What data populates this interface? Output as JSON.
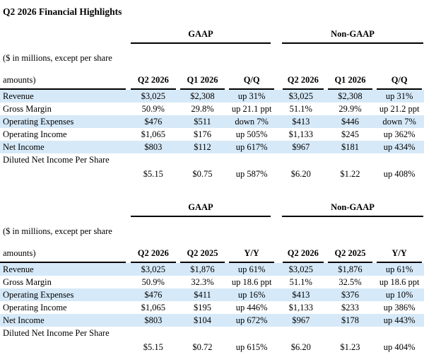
{
  "title": "Q2 2026 Financial Highlights",
  "colors": {
    "highlight_row": "#d6e9f8"
  },
  "tables": [
    {
      "group_headers": {
        "left": "GAAP",
        "right": "Non-GAAP"
      },
      "units_note": {
        "line1": "($ in millions, except per share",
        "line2": "amounts)"
      },
      "columns": [
        "Q2 2026",
        "Q1 2026",
        "Q/Q",
        "Q2 2026",
        "Q1 2026",
        "Q/Q"
      ],
      "rows": [
        {
          "label": "Revenue",
          "highlight": true,
          "values": [
            "$3,025",
            "$2,308",
            "up 31%",
            "$3,025",
            "$2,308",
            "up 31%"
          ]
        },
        {
          "label": "Gross Margin",
          "highlight": false,
          "values": [
            "50.9%",
            "29.8%",
            "up 21.1 ppt",
            "51.1%",
            "29.9%",
            "up 21.2 ppt"
          ]
        },
        {
          "label": "Operating Expenses",
          "highlight": true,
          "values": [
            "$476",
            "$511",
            "down 7%",
            "$413",
            "$446",
            "down 7%"
          ]
        },
        {
          "label": "Operating Income",
          "highlight": false,
          "values": [
            "$1,065",
            "$176",
            "up 505%",
            "$1,133",
            "$245",
            "up 362%"
          ]
        },
        {
          "label": "Net Income",
          "highlight": true,
          "values": [
            "$803",
            "$112",
            "up 617%",
            "$967",
            "$181",
            "up 434%"
          ]
        },
        {
          "label": "Diluted Net Income Per Share",
          "highlight": false,
          "values": [
            "$5.15",
            "$0.75",
            "up 587%",
            "$6.20",
            "$1.22",
            "up 408%"
          ]
        }
      ]
    },
    {
      "group_headers": {
        "left": "GAAP",
        "right": "Non-GAAP"
      },
      "units_note": {
        "line1": "($ in millions, except per share",
        "line2": "amounts)"
      },
      "columns": [
        "Q2 2026",
        "Q2 2025",
        "Y/Y",
        "Q2 2026",
        "Q2 2025",
        "Y/Y"
      ],
      "rows": [
        {
          "label": "Revenue",
          "highlight": true,
          "values": [
            "$3,025",
            "$1,876",
            "up 61%",
            "$3,025",
            "$1,876",
            "up 61%"
          ]
        },
        {
          "label": "Gross Margin",
          "highlight": false,
          "values": [
            "50.9%",
            "32.3%",
            "up 18.6 ppt",
            "51.1%",
            "32.5%",
            "up 18.6 ppt"
          ]
        },
        {
          "label": "Operating Expenses",
          "highlight": true,
          "values": [
            "$476",
            "$411",
            "up 16%",
            "$413",
            "$376",
            "up 10%"
          ]
        },
        {
          "label": "Operating Income",
          "highlight": false,
          "values": [
            "$1,065",
            "$195",
            "up 446%",
            "$1,133",
            "$233",
            "up 386%"
          ]
        },
        {
          "label": "Net Income",
          "highlight": true,
          "values": [
            "$803",
            "$104",
            "up 672%",
            "$967",
            "$178",
            "up 443%"
          ]
        },
        {
          "label": "Diluted Net Income Per Share",
          "highlight": false,
          "values": [
            "$5.15",
            "$0.72",
            "up 615%",
            "$6.20",
            "$1.23",
            "up 404%"
          ]
        }
      ]
    }
  ]
}
